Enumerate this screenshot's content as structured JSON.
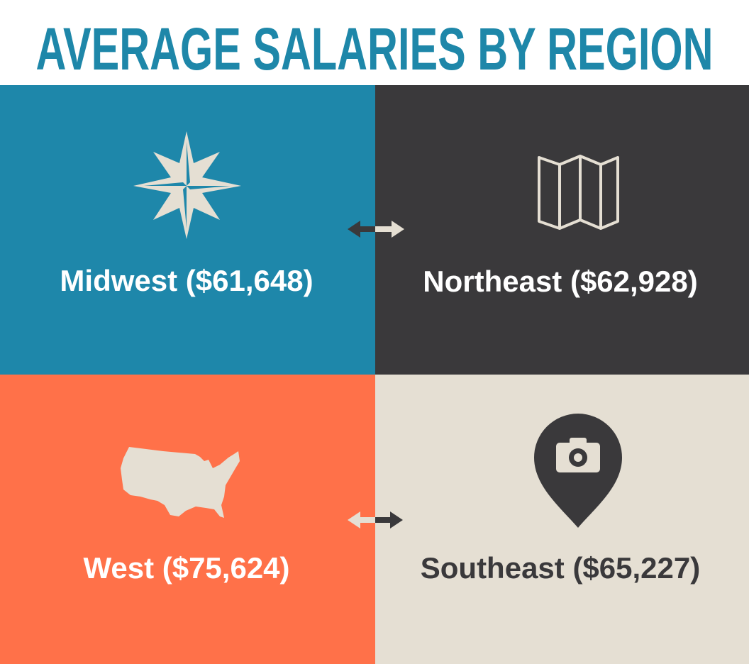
{
  "header": {
    "title": "AVERAGE SALARIES BY REGION"
  },
  "panels": [
    {
      "label": "Midwest ($61,648)"
    },
    {
      "label": "Northeast ($62,928)"
    },
    {
      "label": "West ($75,624)"
    },
    {
      "label": "Southeast ($65,227)"
    }
  ]
}
